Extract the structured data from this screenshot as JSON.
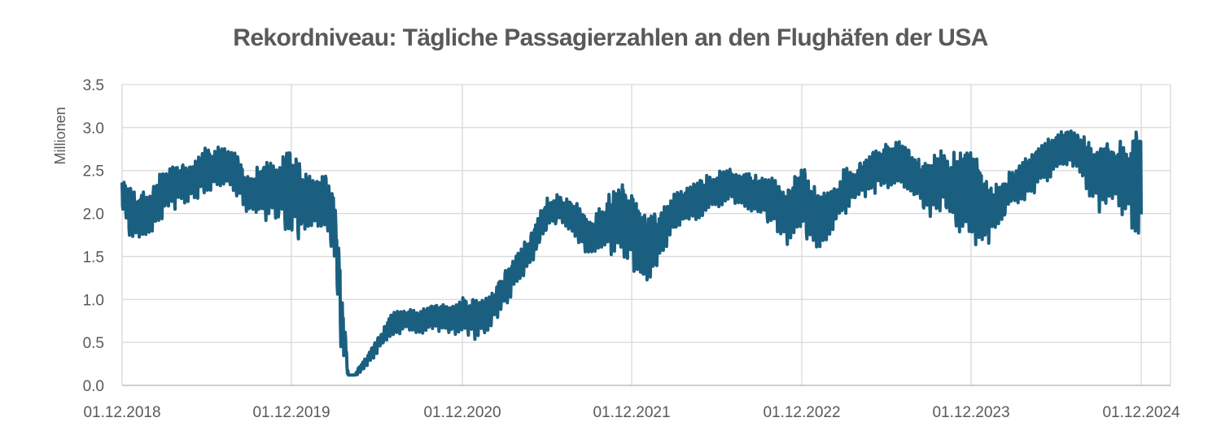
{
  "chart_data": {
    "type": "line",
    "title": "Rekordniveau: Tägliche Passagierzahlen an den Flughäfen der USA",
    "ylabel": "Millionen",
    "xlabel": "",
    "ylim": [
      0,
      3.5
    ],
    "yticks": [
      "0.0",
      "0.5",
      "1.0",
      "1.5",
      "2.0",
      "2.5",
      "3.0",
      "3.5"
    ],
    "xticks": [
      "01.12.2018",
      "01.12.2019",
      "01.12.2020",
      "01.12.2021",
      "01.12.2022",
      "01.12.2023",
      "01.12.2024"
    ],
    "grid": true,
    "series_color": "#1a5f80",
    "series": [
      {
        "x": [
          "01.12.2018",
          "15.12.2018",
          "01.01.2019",
          "01.02.2019",
          "01.03.2019",
          "01.04.2019",
          "01.05.2019",
          "01.06.2019",
          "01.07.2019",
          "01.08.2019",
          "01.09.2019",
          "01.10.2019",
          "01.11.2019",
          "01.12.2019",
          "15.12.2019",
          "01.01.2020",
          "01.02.2020",
          "01.03.2020",
          "15.03.2020",
          "01.04.2020",
          "15.04.2020",
          "01.05.2020",
          "01.06.2020",
          "01.07.2020",
          "01.08.2020",
          "01.09.2020",
          "01.10.2020",
          "01.11.2020",
          "01.12.2020",
          "01.01.2021",
          "01.02.2021",
          "01.03.2021",
          "01.04.2021",
          "01.05.2021",
          "01.06.2021",
          "01.07.2021",
          "01.08.2021",
          "01.09.2021",
          "01.10.2021",
          "01.11.2021",
          "01.12.2021",
          "01.01.2022",
          "01.02.2022",
          "01.03.2022",
          "01.04.2022",
          "01.05.2022",
          "01.06.2022",
          "01.07.2022",
          "01.08.2022",
          "01.09.2022",
          "01.10.2022",
          "01.11.2022",
          "01.12.2022",
          "01.01.2023",
          "01.02.2023",
          "01.03.2023",
          "01.04.2023",
          "01.05.2023",
          "01.06.2023",
          "01.07.2023",
          "01.08.2023",
          "01.09.2023",
          "01.10.2023",
          "01.11.2023",
          "01.12.2023",
          "01.01.2024",
          "01.02.2024",
          "01.03.2024",
          "01.04.2024",
          "01.05.2024",
          "01.06.2024",
          "01.07.2024",
          "01.08.2024",
          "01.09.2024",
          "01.10.2024",
          "01.11.2024",
          "01.12.2024"
        ],
        "values": [
          2.2,
          2.0,
          1.8,
          1.9,
          2.2,
          2.3,
          2.4,
          2.55,
          2.65,
          2.5,
          2.2,
          2.3,
          2.25,
          2.3,
          2.35,
          2.15,
          2.1,
          1.8,
          0.7,
          0.12,
          0.12,
          0.2,
          0.45,
          0.7,
          0.75,
          0.72,
          0.8,
          0.75,
          0.8,
          0.75,
          0.85,
          1.1,
          1.4,
          1.6,
          1.95,
          2.1,
          2.0,
          1.7,
          1.85,
          1.9,
          1.95,
          1.6,
          1.7,
          2.0,
          2.1,
          2.2,
          2.3,
          2.35,
          2.3,
          2.2,
          2.15,
          2.0,
          2.1,
          1.9,
          2.0,
          2.25,
          2.35,
          2.45,
          2.55,
          2.6,
          2.4,
          2.3,
          2.45,
          2.3,
          2.2,
          2.0,
          2.1,
          2.3,
          2.45,
          2.6,
          2.75,
          2.85,
          2.7,
          2.4,
          2.5,
          2.4,
          2.6
        ],
        "band_low": [
          2.0,
          1.7,
          1.6,
          1.7,
          1.95,
          2.05,
          2.1,
          2.2,
          2.3,
          2.2,
          1.95,
          1.9,
          1.8,
          1.75,
          1.6,
          1.8,
          1.75,
          1.5,
          0.35,
          0.1,
          0.1,
          0.15,
          0.35,
          0.55,
          0.6,
          0.58,
          0.62,
          0.55,
          0.6,
          0.5,
          0.65,
          0.85,
          1.15,
          1.4,
          1.75,
          1.85,
          1.65,
          1.45,
          1.5,
          1.45,
          1.3,
          1.1,
          1.45,
          1.75,
          1.85,
          1.95,
          2.05,
          2.1,
          2.05,
          1.95,
          1.8,
          1.55,
          1.7,
          1.5,
          1.7,
          1.95,
          2.1,
          2.2,
          2.25,
          2.3,
          2.15,
          1.85,
          2.0,
          1.7,
          1.55,
          1.55,
          1.8,
          2.05,
          2.15,
          2.3,
          2.45,
          2.5,
          2.3,
          1.95,
          2.0,
          1.85,
          1.55
        ],
        "band_high": [
          2.45,
          2.35,
          2.3,
          2.35,
          2.55,
          2.6,
          2.65,
          2.8,
          2.8,
          2.75,
          2.45,
          2.65,
          2.65,
          2.9,
          2.7,
          2.5,
          2.5,
          2.45,
          1.4,
          0.14,
          0.15,
          0.28,
          0.55,
          0.85,
          0.9,
          0.88,
          0.98,
          0.95,
          1.05,
          1.05,
          1.1,
          1.35,
          1.6,
          1.85,
          2.2,
          2.25,
          2.2,
          1.95,
          2.15,
          2.45,
          2.35,
          2.0,
          2.05,
          2.25,
          2.35,
          2.45,
          2.5,
          2.55,
          2.5,
          2.45,
          2.45,
          2.35,
          2.65,
          2.35,
          2.3,
          2.55,
          2.6,
          2.75,
          2.85,
          2.9,
          2.7,
          2.65,
          2.8,
          2.75,
          2.9,
          2.45,
          2.4,
          2.55,
          2.7,
          2.85,
          3.0,
          3.0,
          2.95,
          2.8,
          2.95,
          2.9,
          3.08
        ]
      }
    ]
  }
}
